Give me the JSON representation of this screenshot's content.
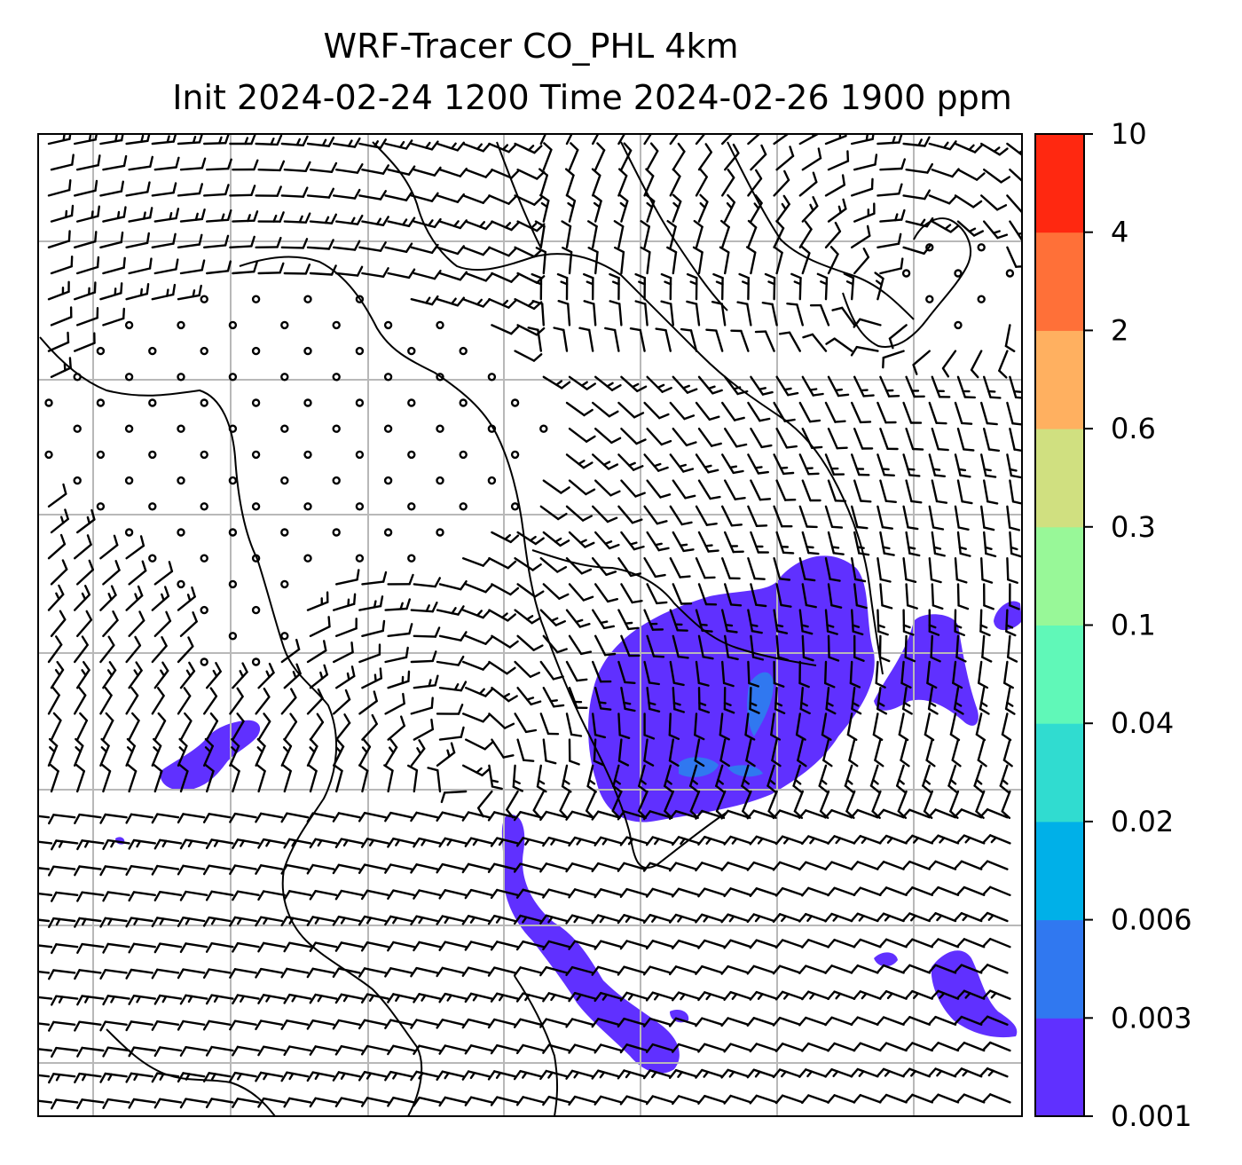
{
  "title": {
    "line1": "WRF-Tracer CO_PHL 4km",
    "line2": "Init 2024-02-24 1200 Time 2024-02-26 1900 ppm"
  },
  "colorbar": {
    "levels": [
      "0.001",
      "0.003",
      "0.006",
      "0.02",
      "0.04",
      "0.1",
      "0.3",
      "0.6",
      "2",
      "4",
      "10"
    ],
    "colors": [
      "#6030ff",
      "#3078f0",
      "#00b0e8",
      "#30dcd0",
      "#60f8b8",
      "#98f898",
      "#d0e080",
      "#ffb060",
      "#ff7038",
      "#ff2810"
    ]
  },
  "map": {
    "plume_color": "#6030ff",
    "core_color": "#3078f0",
    "grid_color": "#b8b8b8",
    "barb_color": "#000000"
  }
}
